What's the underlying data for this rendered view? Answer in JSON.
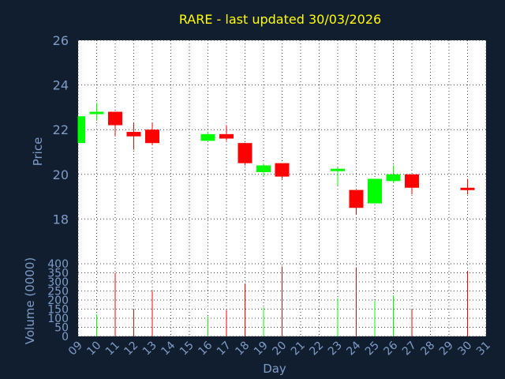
{
  "chart_data": {
    "type": "candlestick",
    "title": "RARE - last updated 30/03/2026",
    "xlabel": "Day",
    "price_panel": {
      "ylabel": "Price",
      "ylim": [
        16,
        26
      ],
      "yticks": [
        "18",
        "20",
        "22",
        "24",
        "26"
      ]
    },
    "volume_panel": {
      "ylabel": "Volume (0000)",
      "ylim": [
        0,
        400
      ],
      "yticks": [
        "0",
        "50",
        "100",
        "150",
        "200",
        "250",
        "300",
        "350",
        "400"
      ]
    },
    "x_ticks": [
      "09",
      "10",
      "11",
      "12",
      "13",
      "14",
      "15",
      "16",
      "17",
      "18",
      "19",
      "20",
      "21",
      "22",
      "23",
      "24",
      "25",
      "26",
      "27",
      "28",
      "29",
      "30",
      "31"
    ],
    "grid": true,
    "colors": {
      "up": "#00ff00",
      "down": "#ff0000",
      "background": "#111e30",
      "panel": "#ffffff",
      "title": "#ffff00",
      "axis_text": "#7f9cc7"
    },
    "candles": [
      {
        "day": 9,
        "open": 21.4,
        "high": 22.6,
        "low": 21.4,
        "close": 22.6,
        "volume": 0
      },
      {
        "day": 10,
        "open": 22.7,
        "high": 23.2,
        "low": 22.4,
        "close": 22.8,
        "volume": 120
      },
      {
        "day": 11,
        "open": 22.8,
        "high": 22.8,
        "low": 21.7,
        "close": 22.2,
        "volume": 350
      },
      {
        "day": 12,
        "open": 21.9,
        "high": 22.3,
        "low": 21.1,
        "close": 21.7,
        "volume": 150
      },
      {
        "day": 13,
        "open": 22.0,
        "high": 22.3,
        "low": 21.3,
        "close": 21.4,
        "volume": 250
      },
      {
        "day": 16,
        "open": 21.5,
        "high": 21.9,
        "low": 21.5,
        "close": 21.8,
        "volume": 110
      },
      {
        "day": 17,
        "open": 21.8,
        "high": 22.2,
        "low": 21.5,
        "close": 21.6,
        "volume": 145
      },
      {
        "day": 18,
        "open": 21.4,
        "high": 21.4,
        "low": 20.4,
        "close": 20.5,
        "volume": 290
      },
      {
        "day": 19,
        "open": 20.1,
        "high": 20.5,
        "low": 19.9,
        "close": 20.4,
        "volume": 160
      },
      {
        "day": 20,
        "open": 20.5,
        "high": 20.5,
        "low": 19.8,
        "close": 19.9,
        "volume": 385
      },
      {
        "day": 23,
        "open": 20.2,
        "high": 20.3,
        "low": 19.5,
        "close": 20.25,
        "volume": 210
      },
      {
        "day": 24,
        "open": 19.3,
        "high": 19.3,
        "low": 18.2,
        "close": 18.5,
        "volume": 380
      },
      {
        "day": 25,
        "open": 18.7,
        "high": 19.8,
        "low": 18.7,
        "close": 19.8,
        "volume": 195
      },
      {
        "day": 26,
        "open": 19.7,
        "high": 20.4,
        "low": 19.6,
        "close": 20.0,
        "volume": 225
      },
      {
        "day": 27,
        "open": 20.0,
        "high": 20.0,
        "low": 19.1,
        "close": 19.4,
        "volume": 150
      },
      {
        "day": 30,
        "open": 19.4,
        "high": 19.8,
        "low": 19.1,
        "close": 19.3,
        "volume": 360
      }
    ]
  }
}
